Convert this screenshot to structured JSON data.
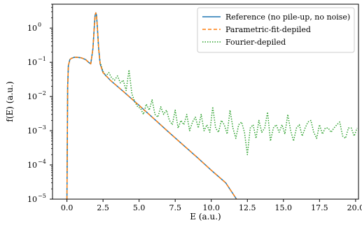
{
  "chart_data": {
    "type": "line",
    "title": "",
    "xlabel": "E (a.u.)",
    "ylabel": "f(E) (a.u.)",
    "xlim": [
      -1.0,
      20.2
    ],
    "ylim": [
      1e-05,
      5
    ],
    "yscale": "log",
    "grid": false,
    "legend_position": "top-right",
    "x_ticks": [
      0.0,
      2.5,
      5.0,
      7.5,
      10.0,
      12.5,
      15.0,
      17.5,
      20.0
    ],
    "x_tick_labels": [
      "0.0",
      "2.5",
      "5.0",
      "7.5",
      "10.0",
      "12.5",
      "15.0",
      "17.5",
      "20.0"
    ],
    "y_ticks": [
      1e-05,
      0.0001,
      0.001,
      0.01,
      0.1,
      1
    ],
    "y_tick_exponents": [
      "−5",
      "−4",
      "−3",
      "−2",
      "−1",
      "0"
    ],
    "y_tick_base": "10",
    "series": [
      {
        "name": "Reference (no pile-up, no noise)",
        "color": "#1f77b4",
        "style": "solid",
        "x": [
          0.0,
          0.05,
          0.1,
          0.2,
          0.3,
          0.5,
          0.7,
          1.0,
          1.3,
          1.5,
          1.65,
          1.8,
          1.9,
          1.95,
          2.0,
          2.05,
          2.1,
          2.2,
          2.3,
          2.5,
          3.0,
          4.0,
          5.0,
          6.0,
          7.0,
          8.0,
          9.0,
          10.0,
          11.0,
          11.75
        ],
        "y": [
          1e-05,
          0.02,
          0.08,
          0.12,
          0.13,
          0.14,
          0.14,
          0.135,
          0.12,
          0.1,
          0.09,
          0.25,
          1.2,
          2.4,
          2.8,
          2.4,
          1.2,
          0.25,
          0.09,
          0.05,
          0.03,
          0.013,
          0.0055,
          0.0023,
          0.00095,
          0.0004,
          0.00017,
          7e-05,
          3e-05,
          1e-05
        ]
      },
      {
        "name": "Parametric-fit-depiled",
        "color": "#ff7f0e",
        "style": "dashed",
        "x": [
          0.0,
          0.05,
          0.1,
          0.2,
          0.3,
          0.5,
          0.7,
          1.0,
          1.3,
          1.5,
          1.65,
          1.8,
          1.9,
          1.95,
          2.0,
          2.05,
          2.1,
          2.2,
          2.3,
          2.5,
          3.0,
          4.0,
          5.0,
          6.0,
          7.0,
          8.0,
          9.0,
          10.0,
          11.0,
          11.75
        ],
        "y": [
          1e-05,
          0.02,
          0.08,
          0.12,
          0.13,
          0.14,
          0.14,
          0.135,
          0.12,
          0.1,
          0.09,
          0.25,
          1.2,
          2.4,
          2.8,
          2.4,
          1.2,
          0.25,
          0.09,
          0.05,
          0.03,
          0.013,
          0.0055,
          0.0023,
          0.00095,
          0.0004,
          0.00017,
          7e-05,
          3e-05,
          1e-05
        ]
      },
      {
        "name": "Fourier-depiled",
        "color": "#2ca02c",
        "style": "dotted",
        "x": [
          0.0,
          0.05,
          0.1,
          0.2,
          0.3,
          0.5,
          0.7,
          1.0,
          1.3,
          1.5,
          1.65,
          1.8,
          1.9,
          1.95,
          2.0,
          2.05,
          2.1,
          2.2,
          2.3,
          2.5,
          2.7,
          2.9,
          3.1,
          3.3,
          3.5,
          3.7,
          3.9,
          4.1,
          4.3,
          4.5,
          4.7,
          4.9,
          5.1,
          5.3,
          5.5,
          5.7,
          5.9,
          6.1,
          6.3,
          6.5,
          6.7,
          6.9,
          7.1,
          7.3,
          7.5,
          7.7,
          7.9,
          8.1,
          8.3,
          8.5,
          8.7,
          8.9,
          9.1,
          9.3,
          9.5,
          9.7,
          9.9,
          10.1,
          10.3,
          10.5,
          10.7,
          10.9,
          11.1,
          11.3,
          11.5,
          11.7,
          11.9,
          12.1,
          12.3,
          12.5,
          12.7,
          12.9,
          13.1,
          13.3,
          13.5,
          13.7,
          13.9,
          14.1,
          14.3,
          14.5,
          14.7,
          14.9,
          15.1,
          15.3,
          15.5,
          15.7,
          15.9,
          16.1,
          16.3,
          16.5,
          16.7,
          16.9,
          17.1,
          17.3,
          17.5,
          17.7,
          17.9,
          18.1,
          18.3,
          18.5,
          18.7,
          18.9,
          19.1,
          19.3,
          19.5,
          19.7,
          19.9,
          20.1
        ],
        "y": [
          1e-05,
          0.02,
          0.08,
          0.12,
          0.13,
          0.14,
          0.14,
          0.135,
          0.12,
          0.1,
          0.09,
          0.25,
          1.2,
          2.4,
          2.6,
          2.2,
          1.1,
          0.22,
          0.1,
          0.055,
          0.04,
          0.05,
          0.035,
          0.03,
          0.04,
          0.025,
          0.03,
          0.015,
          0.06,
          0.012,
          0.007,
          0.005,
          0.0045,
          0.003,
          0.006,
          0.004,
          0.008,
          0.003,
          0.0025,
          0.005,
          0.003,
          0.004,
          0.002,
          0.0015,
          0.004,
          0.0012,
          0.002,
          0.0015,
          0.003,
          0.001,
          0.0018,
          0.0025,
          0.0012,
          0.003,
          0.001,
          0.0015,
          0.0009,
          0.005,
          0.0012,
          0.0009,
          0.002,
          0.0015,
          0.0008,
          0.004,
          0.0012,
          0.0006,
          0.0015,
          0.0018,
          0.0009,
          0.0002,
          0.0012,
          0.0015,
          0.0006,
          0.002,
          0.0009,
          0.0012,
          0.0035,
          0.0005,
          0.0012,
          0.0015,
          0.0009,
          0.0015,
          0.0008,
          0.003,
          0.001,
          0.0005,
          0.0012,
          0.0015,
          0.0007,
          0.0012,
          0.0018,
          0.002,
          0.0009,
          0.0006,
          0.0015,
          0.0008,
          0.0012,
          0.0012,
          0.0009,
          0.0012,
          0.0015,
          0.0018,
          0.0007,
          0.0006,
          0.0012,
          0.0012,
          0.0007,
          0.0012
        ]
      }
    ]
  }
}
